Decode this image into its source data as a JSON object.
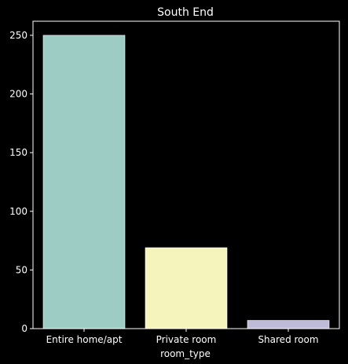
{
  "chart_data": {
    "type": "bar",
    "title": "South End",
    "xlabel": "room_type",
    "ylabel": "",
    "categories": [
      "Entire home/apt",
      "Private room",
      "Shared room"
    ],
    "values": [
      250,
      69,
      7
    ],
    "colors": [
      "#9dccc4",
      "#f6f4bd",
      "#bdbbd7"
    ],
    "ylim": [
      0,
      262
    ],
    "yticks": [
      0,
      50,
      100,
      150,
      200,
      250
    ],
    "grid": false,
    "legend": "none"
  },
  "style": {
    "background": "#000000",
    "axis_color": "#ffffff",
    "text_color": "#ffffff"
  }
}
